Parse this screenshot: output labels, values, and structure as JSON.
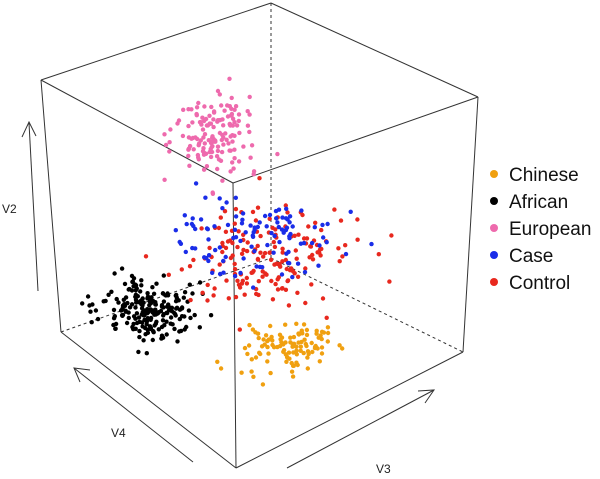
{
  "chart_data": {
    "type": "scatter",
    "subtype": "3d-scatter",
    "axes": {
      "x": {
        "label": "V3"
      },
      "y": {
        "label": "V2"
      },
      "z": {
        "label": "V4"
      }
    },
    "grid": false,
    "legend_position": "right",
    "series": [
      {
        "name": "Chinese",
        "color": "#f0a010"
      },
      {
        "name": "African",
        "color": "#000000"
      },
      {
        "name": "European",
        "color": "#ee6aad"
      },
      {
        "name": "Case",
        "color": "#1a2de8"
      },
      {
        "name": "Control",
        "color": "#e8281e"
      }
    ]
  }
}
